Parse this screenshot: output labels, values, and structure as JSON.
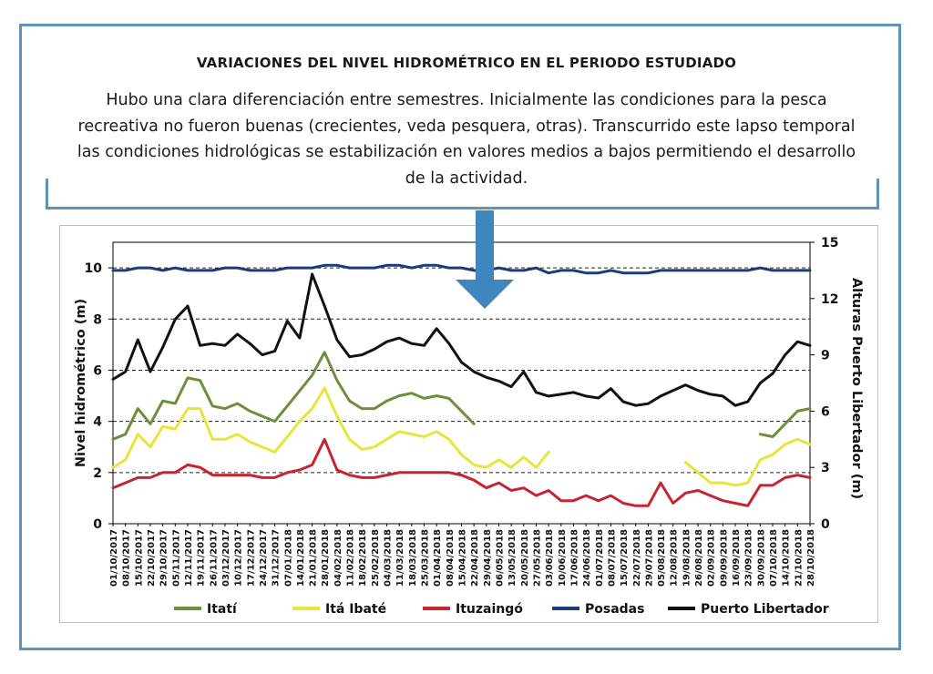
{
  "title": "VARIACIONES DEL NIVEL HIDROMÉTRICO EN EL PERIODO ESTUDIADO",
  "description": "Hubo una clara diferenciación entre semestres. Inicialmente las condiciones para la pesca recreativa no fueron buenas (crecientes, veda pesquera, otras). Transcurrido este lapso  temporal las condiciones hidrológicas se estabilización en valores medios a bajos permitiendo el desarrollo de la actividad.",
  "colors": {
    "frame": "#5f93b9",
    "arrow": "#3e86bd"
  },
  "chart_data": {
    "type": "line",
    "ylabel": "Nivel hidrométrico (m)",
    "y2label": "Alturas Puerto Libertador  (m)",
    "ylim": [
      0,
      11
    ],
    "y2lim": [
      0,
      15
    ],
    "yticks": [
      "0",
      "2",
      "4",
      "6",
      "8",
      "10"
    ],
    "y2ticks": [
      "0",
      "3",
      "6",
      "9",
      "12",
      "15"
    ],
    "grid": "dashed horizontal at 2, 4, 6, 8, 10",
    "legend_position": "bottom",
    "x": [
      "01/10/2017",
      "08/10/2017",
      "15/10/2017",
      "22/10/2017",
      "29/10/2017",
      "05/11/2017",
      "12/11/2017",
      "19/11/2017",
      "26/11/2017",
      "03/12/2017",
      "10/12/2017",
      "17/12/2017",
      "24/12/2017",
      "31/12/2017",
      "07/01/2018",
      "14/01/2018",
      "21/01/2018",
      "28/01/2018",
      "04/02/2018",
      "11/02/2018",
      "18/02/2018",
      "25/02/2018",
      "04/03/2018",
      "11/03/2018",
      "18/03/2018",
      "25/03/2018",
      "01/04/2018",
      "08/04/2018",
      "15/04/2018",
      "22/04/2018",
      "29/04/2018",
      "06/05/2018",
      "13/05/2018",
      "20/05/2018",
      "27/05/2018",
      "03/06/2018",
      "10/06/2018",
      "17/06/2018",
      "24/06/2018",
      "01/07/2018",
      "08/07/2018",
      "15/07/2018",
      "22/07/2018",
      "29/07/2018",
      "05/08/2018",
      "12/08/2018",
      "19/08/2018",
      "26/08/2018",
      "02/09/2018",
      "09/09/2018",
      "16/09/2018",
      "23/09/2018",
      "30/09/2018",
      "07/10/2018",
      "14/10/2018",
      "21/10/2018",
      "28/10/2018"
    ],
    "series": [
      {
        "name": "Itatí",
        "color": "#6b8f3a",
        "axis": "left",
        "values": [
          3.3,
          3.5,
          4.5,
          3.9,
          4.8,
          4.7,
          5.7,
          5.6,
          4.6,
          4.5,
          4.7,
          4.4,
          4.2,
          4.0,
          4.6,
          5.2,
          5.8,
          6.7,
          5.6,
          4.8,
          4.5,
          4.5,
          4.8,
          5.0,
          5.1,
          4.9,
          5.0,
          4.9,
          4.4,
          3.9,
          null,
          null,
          null,
          null,
          null,
          null,
          null,
          null,
          null,
          null,
          null,
          null,
          null,
          null,
          null,
          null,
          null,
          null,
          null,
          null,
          null,
          null,
          3.5,
          3.4,
          3.9,
          4.4,
          4.5
        ]
      },
      {
        "name": "Itá Ibaté",
        "color": "#e8e43a",
        "axis": "left",
        "values": [
          2.2,
          2.5,
          3.5,
          3.0,
          3.8,
          3.7,
          4.5,
          4.5,
          3.3,
          3.3,
          3.5,
          3.2,
          3.0,
          2.8,
          3.4,
          4.0,
          4.5,
          5.3,
          4.2,
          3.3,
          2.9,
          3.0,
          3.3,
          3.6,
          3.5,
          3.4,
          3.6,
          3.3,
          2.7,
          2.3,
          2.2,
          2.5,
          2.2,
          2.6,
          2.2,
          2.8,
          null,
          2.3,
          null,
          null,
          null,
          null,
          null,
          null,
          2.6,
          null,
          2.4,
          2.0,
          1.6,
          1.6,
          1.5,
          1.6,
          2.5,
          2.7,
          3.1,
          3.3,
          3.1
        ]
      },
      {
        "name": "Ituzaingó",
        "color": "#c8242f",
        "axis": "left",
        "values": [
          1.4,
          1.6,
          1.8,
          1.8,
          2.0,
          2.0,
          2.3,
          2.2,
          1.9,
          1.9,
          1.9,
          1.9,
          1.8,
          1.8,
          2.0,
          2.1,
          2.3,
          3.3,
          2.1,
          1.9,
          1.8,
          1.8,
          1.9,
          2.0,
          2.0,
          2.0,
          2.0,
          2.0,
          1.9,
          1.7,
          1.4,
          1.6,
          1.3,
          1.4,
          1.1,
          1.3,
          0.9,
          0.9,
          1.1,
          0.9,
          1.1,
          0.8,
          0.7,
          0.7,
          1.6,
          0.8,
          1.2,
          1.3,
          1.1,
          0.9,
          0.8,
          0.7,
          1.5,
          1.5,
          1.8,
          1.9,
          1.8
        ]
      },
      {
        "name": "Posadas",
        "color": "#1f3a7a",
        "axis": "left",
        "values": [
          9.9,
          9.9,
          10.0,
          10.0,
          9.9,
          10.0,
          9.9,
          9.9,
          9.9,
          10.0,
          10.0,
          9.9,
          9.9,
          9.9,
          10.0,
          10.0,
          10.0,
          10.1,
          10.1,
          10.0,
          10.0,
          10.0,
          10.1,
          10.1,
          10.0,
          10.1,
          10.1,
          10.0,
          10.0,
          9.9,
          9.9,
          10.0,
          9.9,
          9.9,
          10.0,
          9.8,
          9.9,
          9.9,
          9.8,
          9.8,
          9.9,
          9.8,
          9.8,
          9.8,
          9.9,
          9.9,
          9.9,
          9.9,
          9.9,
          9.9,
          9.9,
          9.9,
          10.0,
          9.9,
          9.9,
          9.9,
          9.9
        ]
      },
      {
        "name": "Puerto Libertador",
        "color": "#111111",
        "axis": "right",
        "values": [
          7.7,
          8.1,
          9.8,
          8.1,
          9.4,
          10.9,
          11.6,
          9.5,
          9.6,
          9.5,
          10.1,
          9.6,
          9.0,
          9.2,
          10.8,
          9.9,
          13.3,
          11.6,
          9.8,
          8.9,
          9.0,
          9.3,
          9.7,
          9.9,
          9.6,
          9.5,
          10.4,
          9.6,
          8.6,
          8.1,
          7.8,
          7.6,
          7.3,
          8.1,
          7.0,
          6.8,
          6.9,
          7.0,
          6.8,
          6.7,
          7.2,
          6.5,
          6.3,
          6.4,
          6.8,
          7.1,
          7.4,
          7.1,
          6.9,
          6.8,
          6.3,
          6.5,
          7.5,
          8.0,
          9.0,
          9.7,
          9.5
        ]
      }
    ]
  }
}
